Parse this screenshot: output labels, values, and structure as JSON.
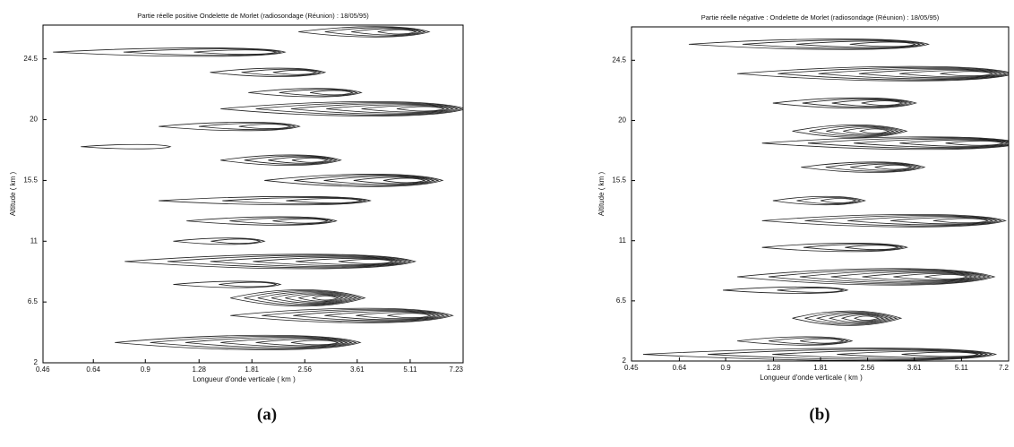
{
  "chart_data": [
    {
      "type": "contour",
      "title": "Partie réelle positive   Ondelette de Morlet   (radiosondage (Réunion) : 18/05/95)",
      "x_label": "Longueur d'onde verticale ( km )",
      "y_label": "Altitude ( km )",
      "panel_label": "(a)",
      "x_scale": "log",
      "xlim": [
        0.46,
        7.23
      ],
      "xticks": [
        0.46,
        0.64,
        0.9,
        1.28,
        1.81,
        2.56,
        3.61,
        5.11,
        7.23
      ],
      "ylim": [
        2,
        27
      ],
      "yticks": [
        2,
        6.5,
        11,
        15.5,
        20,
        24.5
      ],
      "color": "#222222",
      "features": [
        {
          "x0": 0.75,
          "x": 3.0,
          "y": 3.5,
          "rings": 6
        },
        {
          "x0": 1.6,
          "x": 5.5,
          "y": 5.5,
          "rings": 6
        },
        {
          "x0": 1.6,
          "x": 3.0,
          "y": 6.8,
          "rings": 7
        },
        {
          "x0": 1.1,
          "x": 2.0,
          "y": 7.8,
          "rings": 2
        },
        {
          "x0": 0.8,
          "x": 4.3,
          "y": 9.5,
          "rings": 6
        },
        {
          "x0": 1.1,
          "x": 1.8,
          "y": 11,
          "rings": 2
        },
        {
          "x0": 1.2,
          "x": 2.8,
          "y": 12.5,
          "rings": 3
        },
        {
          "x0": 1.0,
          "x": 3.5,
          "y": 14,
          "rings": 3
        },
        {
          "x0": 2.0,
          "x": 5.3,
          "y": 15.5,
          "rings": 5
        },
        {
          "x0": 1.5,
          "x": 2.8,
          "y": 17,
          "rings": 4
        },
        {
          "x0": 0.6,
          "x": 1.0,
          "y": 18,
          "rings": 1
        },
        {
          "x0": 1.0,
          "x": 2.2,
          "y": 19.5,
          "rings": 3
        },
        {
          "x0": 1.5,
          "x": 6.0,
          "y": 20.8,
          "rings": 6
        },
        {
          "x0": 1.8,
          "x": 3.3,
          "y": 22,
          "rings": 3
        },
        {
          "x0": 1.4,
          "x": 2.6,
          "y": 23.5,
          "rings": 3
        },
        {
          "x0": 0.5,
          "x": 2.0,
          "y": 25,
          "rings": 3
        },
        {
          "x0": 2.5,
          "x": 5.0,
          "y": 26.5,
          "rings": 4
        }
      ]
    },
    {
      "type": "contour",
      "title": "Partie réelle négative :  Ondelette de Morlet  (radiosondage (Réunion) : 18/05/95)",
      "x_label": "Longueur d'onde verticale ( km )",
      "y_label": "Altitude ( km )",
      "panel_label": "(b)",
      "x_scale": "log",
      "xlim": [
        0.45,
        7.23
      ],
      "xticks": [
        0.45,
        0.64,
        0.9,
        1.28,
        1.81,
        2.56,
        3.61,
        5.11,
        {
          "value": 7.23,
          "label": "7.2"
        }
      ],
      "ylim": [
        2,
        27
      ],
      "yticks": [
        2,
        6.5,
        11,
        15.5,
        20,
        24.5
      ],
      "color": "#222222",
      "features": [
        {
          "x0": 0.5,
          "x": 5.4,
          "y": 2.5,
          "rings": 5
        },
        {
          "x0": 1.0,
          "x": 2.0,
          "y": 3.5,
          "rings": 3
        },
        {
          "x0": 1.5,
          "x": 2.6,
          "y": 5.2,
          "rings": 6
        },
        {
          "x0": 0.9,
          "x": 2.0,
          "y": 7.3,
          "rings": 2
        },
        {
          "x0": 1.0,
          "x": 5.0,
          "y": 8.3,
          "rings": 7
        },
        {
          "x0": 1.2,
          "x": 3.0,
          "y": 10.5,
          "rings": 3
        },
        {
          "x0": 1.2,
          "x": 5.8,
          "y": 12.5,
          "rings": 5
        },
        {
          "x0": 1.3,
          "x": 2.2,
          "y": 14,
          "rings": 3
        },
        {
          "x0": 1.6,
          "x": 3.3,
          "y": 16.5,
          "rings": 4
        },
        {
          "x0": 1.2,
          "x": 6.5,
          "y": 18.3,
          "rings": 5
        },
        {
          "x0": 1.5,
          "x": 2.8,
          "y": 19.2,
          "rings": 5
        },
        {
          "x0": 1.3,
          "x": 3.1,
          "y": 21.3,
          "rings": 4
        },
        {
          "x0": 1.0,
          "x": 6.0,
          "y": 23.5,
          "rings": 6
        },
        {
          "x0": 0.7,
          "x": 3.4,
          "y": 25.7,
          "rings": 4
        }
      ]
    }
  ]
}
